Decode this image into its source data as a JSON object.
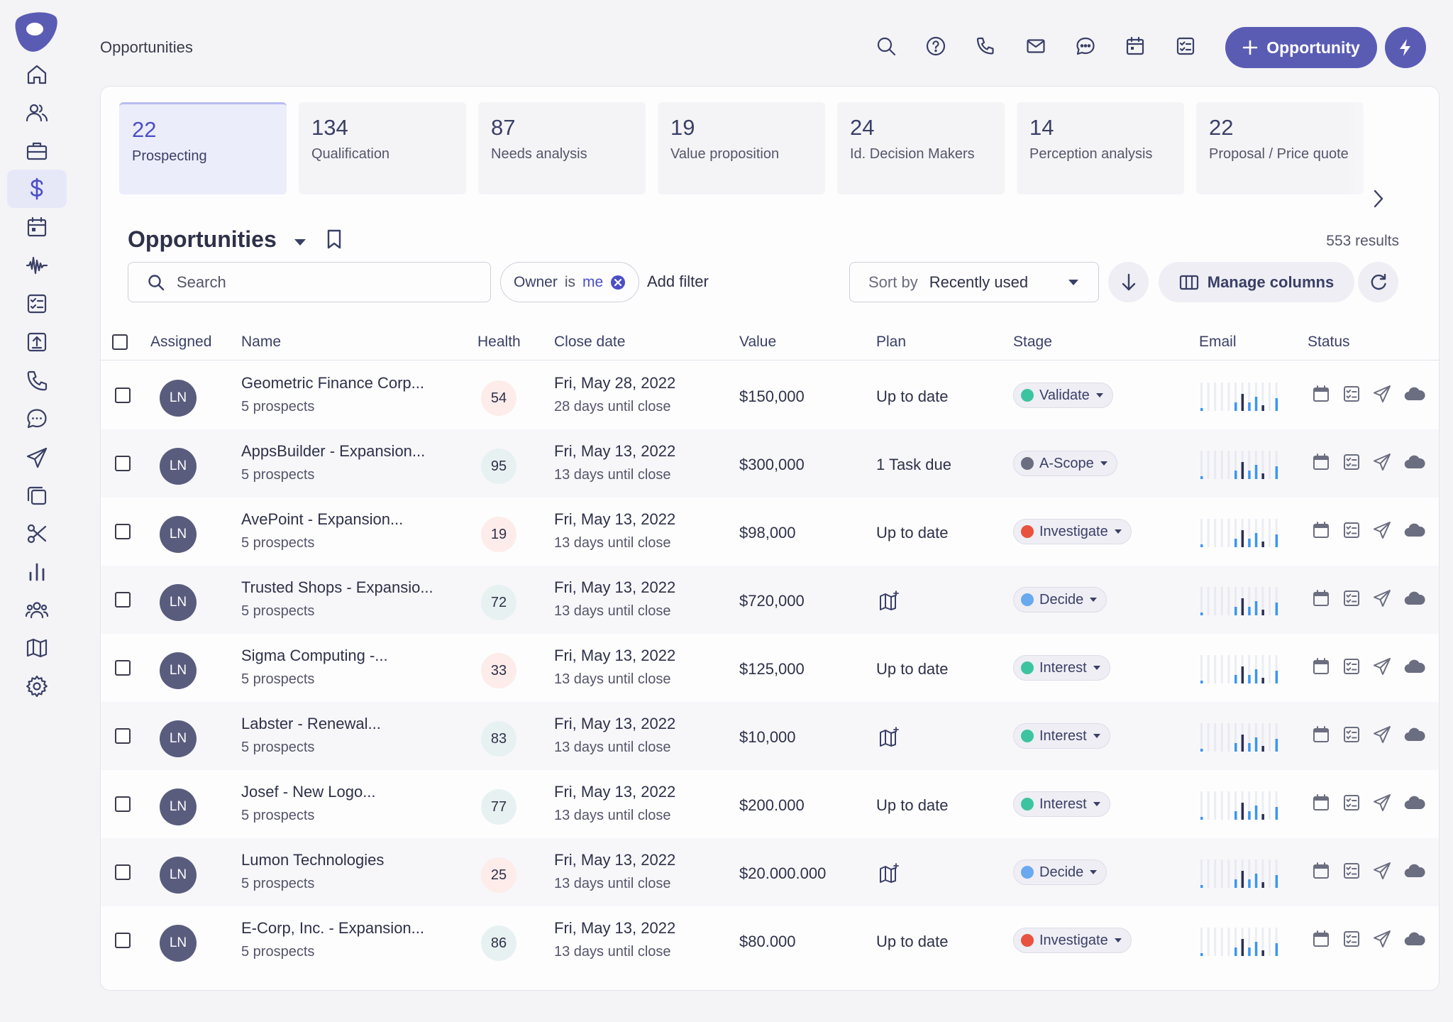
{
  "header": {
    "page_label": "Opportunities",
    "add_button_label": "Opportunity"
  },
  "sidebar": {
    "items": [
      {
        "icon": "home-icon"
      },
      {
        "icon": "people-icon"
      },
      {
        "icon": "briefcase-icon"
      },
      {
        "icon": "dollar-icon",
        "active": true
      },
      {
        "icon": "calendar-icon"
      },
      {
        "icon": "waveform-icon"
      },
      {
        "icon": "task-list-icon"
      },
      {
        "icon": "upload-icon"
      },
      {
        "icon": "phone-icon"
      },
      {
        "icon": "chat-icon"
      },
      {
        "icon": "send-icon"
      },
      {
        "icon": "copy-icon"
      },
      {
        "icon": "scissors-icon"
      },
      {
        "icon": "bar-chart-icon"
      },
      {
        "icon": "team-icon"
      },
      {
        "icon": "map-icon"
      },
      {
        "icon": "settings-icon"
      }
    ]
  },
  "stages": [
    {
      "count": "22",
      "label": "Prospecting",
      "active": true
    },
    {
      "count": "134",
      "label": "Qualification"
    },
    {
      "count": "87",
      "label": "Needs analysis"
    },
    {
      "count": "19",
      "label": "Value proposition"
    },
    {
      "count": "24",
      "label": "Id. Decision Makers"
    },
    {
      "count": "14",
      "label": "Perception analysis"
    },
    {
      "count": "22",
      "label": "Proposal / Price quote"
    }
  ],
  "list": {
    "title": "Opportunities",
    "results": "553 results",
    "search_placeholder": "Search",
    "filter_chip": {
      "field": "Owner",
      "op": "is",
      "value": "me"
    },
    "add_filter_label": "Add filter",
    "sort_label": "Sort by",
    "sort_value": "Recently used",
    "manage_columns_label": "Manage columns"
  },
  "table": {
    "columns": {
      "assigned": "Assigned",
      "name": "Name",
      "health": "Health",
      "close_date": "Close date",
      "value": "Value",
      "plan": "Plan",
      "stage": "Stage",
      "email": "Email",
      "status": "Status"
    },
    "rows": [
      {
        "initials": "LN",
        "name": "Geometric Finance Corp...",
        "sub": "5 prospects",
        "health": "54",
        "health_level": "warn",
        "date": "Fri, May 28, 2022",
        "date_sub": "28 days until close",
        "value": "$150,000",
        "plan": "Up to date",
        "plan_type": "text",
        "stage": "Validate",
        "stage_color": "#3cc4a0"
      },
      {
        "initials": "LN",
        "name": "AppsBuilder - Expansion...",
        "sub": "5 prospects",
        "health": "95",
        "health_level": "good",
        "date": "Fri, May 13, 2022",
        "date_sub": "13 days until close",
        "value": "$300,000",
        "plan": "1 Task due",
        "plan_type": "text",
        "stage": "A-Scope",
        "stage_color": "#6b6d80"
      },
      {
        "initials": "LN",
        "name": "AvePoint - Expansion...",
        "sub": "5 prospects",
        "health": "19",
        "health_level": "warn",
        "date": "Fri, May 13, 2022",
        "date_sub": "13 days until close",
        "value": "$98,000",
        "plan": "Up to date",
        "plan_type": "text",
        "stage": "Investigate",
        "stage_color": "#e8533f"
      },
      {
        "initials": "LN",
        "name": "Trusted Shops - Expansio...",
        "sub": "5 prospects",
        "health": "72",
        "health_level": "good",
        "date": "Fri, May 13, 2022",
        "date_sub": "13 days until close",
        "value": "$720,000",
        "plan": "",
        "plan_type": "map-icon",
        "stage": "Decide",
        "stage_color": "#6aa8f0"
      },
      {
        "initials": "LN",
        "name": "Sigma Computing -...",
        "sub": "5 prospects",
        "health": "33",
        "health_level": "warn",
        "date": "Fri, May 13, 2022",
        "date_sub": "13 days until close",
        "value": "$125,000",
        "plan": "Up to date",
        "plan_type": "text",
        "stage": "Interest",
        "stage_color": "#3cc4a0"
      },
      {
        "initials": "LN",
        "name": "Labster - Renewal...",
        "sub": "5 prospects",
        "health": "83",
        "health_level": "good",
        "date": "Fri, May 13, 2022",
        "date_sub": "13 days until close",
        "value": "$10,000",
        "plan": "",
        "plan_type": "map-icon",
        "stage": "Interest",
        "stage_color": "#3cc4a0"
      },
      {
        "initials": "LN",
        "name": "Josef - New Logo...",
        "sub": "5 prospects",
        "health": "77",
        "health_level": "good",
        "date": "Fri, May 13, 2022",
        "date_sub": "13 days until close",
        "value": "$200.000",
        "plan": "Up to date",
        "plan_type": "text",
        "stage": "Interest",
        "stage_color": "#3cc4a0"
      },
      {
        "initials": "LN",
        "name": "Lumon Technologies",
        "sub": "5 prospects",
        "health": "25",
        "health_level": "warn",
        "date": "Fri, May 13, 2022",
        "date_sub": "13 days until close",
        "value": "$20.000.000",
        "plan": "",
        "plan_type": "map-icon",
        "stage": "Decide",
        "stage_color": "#6aa8f0"
      },
      {
        "initials": "LN",
        "name": "E-Corp, Inc. - Expansion...",
        "sub": "5 prospects",
        "health": "86",
        "health_level": "good",
        "date": "Fri, May 13, 2022",
        "date_sub": "13 days until close",
        "value": "$80.000",
        "plan": "Up to date",
        "plan_type": "text",
        "stage": "Investigate",
        "stage_color": "#e8533f"
      }
    ]
  },
  "colors": {
    "brand": "#5a5cb4",
    "avatar": "#5a5c7e"
  }
}
